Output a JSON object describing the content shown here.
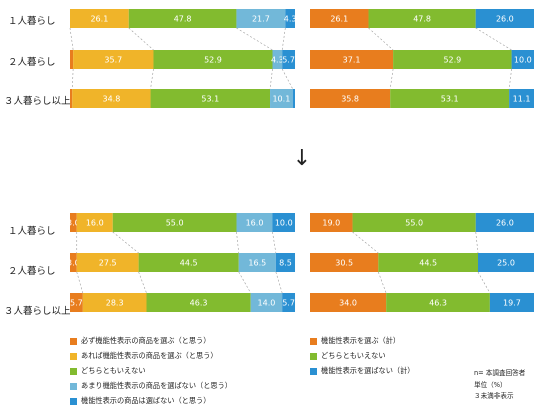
{
  "arrow": "↓",
  "rows": [
    "１人暮らし",
    "２人暮らし",
    "３人暮らし以上"
  ],
  "colors": {
    "must": "#e87d1e",
    "rather": "#f0b429",
    "neutral": "#82bb2f",
    "rather_not": "#72b8d9",
    "not": "#2a90d2",
    "sel_total": "#e87d1e",
    "neu_total": "#82bb2f",
    "not_total": "#2a90d2"
  },
  "legend_left": [
    {
      "label": "必ず機能性表示の商品を選ぶ（と思う）",
      "color_key": "must"
    },
    {
      "label": "あれば機能性表示の商品を選ぶ（と思う）",
      "color_key": "rather"
    },
    {
      "label": "どちらともいえない",
      "color_key": "neutral"
    },
    {
      "label": "あまり機能性表示の商品を選ばない（と思う）",
      "color_key": "rather_not"
    },
    {
      "label": "機能性表示の商品は選ばない（と思う）",
      "color_key": "not"
    }
  ],
  "legend_right": [
    {
      "label": "機能性表示を選ぶ（計）",
      "color_key": "sel_total"
    },
    {
      "label": "どちらともいえない",
      "color_key": "neu_total"
    },
    {
      "label": "機能性表示を選ばない（計）",
      "color_key": "not_total"
    }
  ],
  "notes": [
    "n= 本調査回答者",
    "単位（%）",
    "３未満非表示"
  ],
  "chart_data": [
    {
      "type": "bar",
      "orientation": "horizontal",
      "stacked": true,
      "panel": "top-left",
      "categories": [
        "１人暮らし",
        "２人暮らし",
        "３人暮らし以上"
      ],
      "series": [
        {
          "name": "必ず機能性表示の商品を選ぶ（と思う）",
          "color_key": "must",
          "values": [
            0,
            1.4,
            1.0
          ],
          "labels": [
            "",
            "",
            ""
          ]
        },
        {
          "name": "あれば機能性表示の商品を選ぶ（と思う）",
          "color_key": "rather",
          "values": [
            26.1,
            35.7,
            34.8
          ],
          "labels": [
            "26.1",
            "35.7",
            "34.8"
          ]
        },
        {
          "name": "どちらともいえない",
          "color_key": "neutral",
          "values": [
            47.8,
            52.9,
            53.1
          ],
          "labels": [
            "47.8",
            "52.9",
            "53.1"
          ]
        },
        {
          "name": "あまり機能性表示の商品を選ばない（と思う）",
          "color_key": "rather_not",
          "values": [
            21.7,
            4.3,
            10.1
          ],
          "labels": [
            "21.7",
            "4.3",
            "10.1"
          ]
        },
        {
          "name": "機能性表示の商品は選ばない（と思う）",
          "color_key": "not",
          "values": [
            4.3,
            5.7,
            1.0
          ],
          "labels": [
            "4.3",
            "5.7",
            ""
          ]
        }
      ]
    },
    {
      "type": "bar",
      "orientation": "horizontal",
      "stacked": true,
      "panel": "top-right",
      "categories": [
        "１人暮らし",
        "２人暮らし",
        "３人暮らし以上"
      ],
      "series": [
        {
          "name": "機能性表示を選ぶ（計）",
          "color_key": "sel_total",
          "values": [
            26.1,
            37.1,
            35.8
          ],
          "labels": [
            "26.1",
            "37.1",
            "35.8"
          ]
        },
        {
          "name": "どちらともいえない",
          "color_key": "neu_total",
          "values": [
            47.8,
            52.9,
            53.1
          ],
          "labels": [
            "47.8",
            "52.9",
            "53.1"
          ]
        },
        {
          "name": "機能性表示を選ばない（計）",
          "color_key": "not_total",
          "values": [
            26.0,
            10.0,
            11.1
          ],
          "labels": [
            "26.0",
            "10.0",
            "11.1"
          ]
        }
      ]
    },
    {
      "type": "bar",
      "orientation": "horizontal",
      "stacked": true,
      "panel": "bottom-left",
      "categories": [
        "１人暮らし",
        "２人暮らし",
        "３人暮らし以上"
      ],
      "series": [
        {
          "name": "必ず機能性表示の商品を選ぶ（と思う）",
          "color_key": "must",
          "values": [
            3.0,
            3.0,
            5.7
          ],
          "labels": [
            "3.0",
            "3.0",
            "5.7"
          ]
        },
        {
          "name": "あれば機能性表示の商品を選ぶ（と思う）",
          "color_key": "rather",
          "values": [
            16.0,
            27.5,
            28.3
          ],
          "labels": [
            "16.0",
            "27.5",
            "28.3"
          ]
        },
        {
          "name": "どちらともいえない",
          "color_key": "neutral",
          "values": [
            55.0,
            44.5,
            46.3
          ],
          "labels": [
            "55.0",
            "44.5",
            "46.3"
          ]
        },
        {
          "name": "あまり機能性表示の商品を選ばない（と思う）",
          "color_key": "rather_not",
          "values": [
            16.0,
            16.5,
            14.0
          ],
          "labels": [
            "16.0",
            "16.5",
            "14.0"
          ]
        },
        {
          "name": "機能性表示の商品は選ばない（と思う）",
          "color_key": "not",
          "values": [
            10.0,
            8.5,
            5.7
          ],
          "labels": [
            "10.0",
            "8.5",
            "5.7"
          ]
        }
      ]
    },
    {
      "type": "bar",
      "orientation": "horizontal",
      "stacked": true,
      "panel": "bottom-right",
      "categories": [
        "１人暮らし",
        "２人暮らし",
        "３人暮らし以上"
      ],
      "series": [
        {
          "name": "機能性表示を選ぶ（計）",
          "color_key": "sel_total",
          "values": [
            19.0,
            30.5,
            34.0
          ],
          "labels": [
            "19.0",
            "30.5",
            "34.0"
          ]
        },
        {
          "name": "どちらともいえない",
          "color_key": "neu_total",
          "values": [
            55.0,
            44.5,
            46.3
          ],
          "labels": [
            "55.0",
            "44.5",
            "46.3"
          ]
        },
        {
          "name": "機能性表示を選ばない（計）",
          "color_key": "not_total",
          "values": [
            26.0,
            25.0,
            19.7
          ],
          "labels": [
            "26.0",
            "25.0",
            "19.7"
          ]
        }
      ]
    }
  ]
}
